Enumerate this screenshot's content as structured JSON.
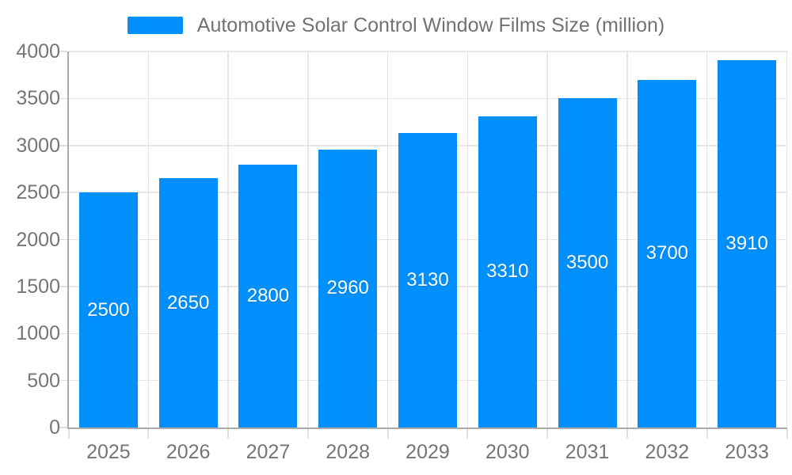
{
  "legend": {
    "swatch_color": "#008FFB"
  },
  "chart_data": {
    "type": "bar",
    "title": "Automotive Solar Control Window Films Size (million)",
    "categories": [
      "2025",
      "2026",
      "2027",
      "2028",
      "2029",
      "2030",
      "2031",
      "2032",
      "2033"
    ],
    "values": [
      2500,
      2650,
      2800,
      2960,
      3130,
      3310,
      3500,
      3700,
      3910
    ],
    "xlabel": "",
    "ylabel": "",
    "ylim": [
      0,
      4000
    ],
    "ytick_step": 500,
    "yticks": [
      0,
      500,
      1000,
      1500,
      2000,
      2500,
      3000,
      3500,
      4000
    ],
    "grid": true,
    "legend_position": "top",
    "bar_labels_inside_middle": true,
    "colors": {
      "bar": "#008FFB",
      "bar_label_text": "#ffffff",
      "gridline": "#e7e7e7",
      "axis_line": "#ababab",
      "tick_mark": "#e0e0e0",
      "tick_label_text": "#757575",
      "legend_text": "#727272",
      "background": "#ffffff"
    }
  }
}
